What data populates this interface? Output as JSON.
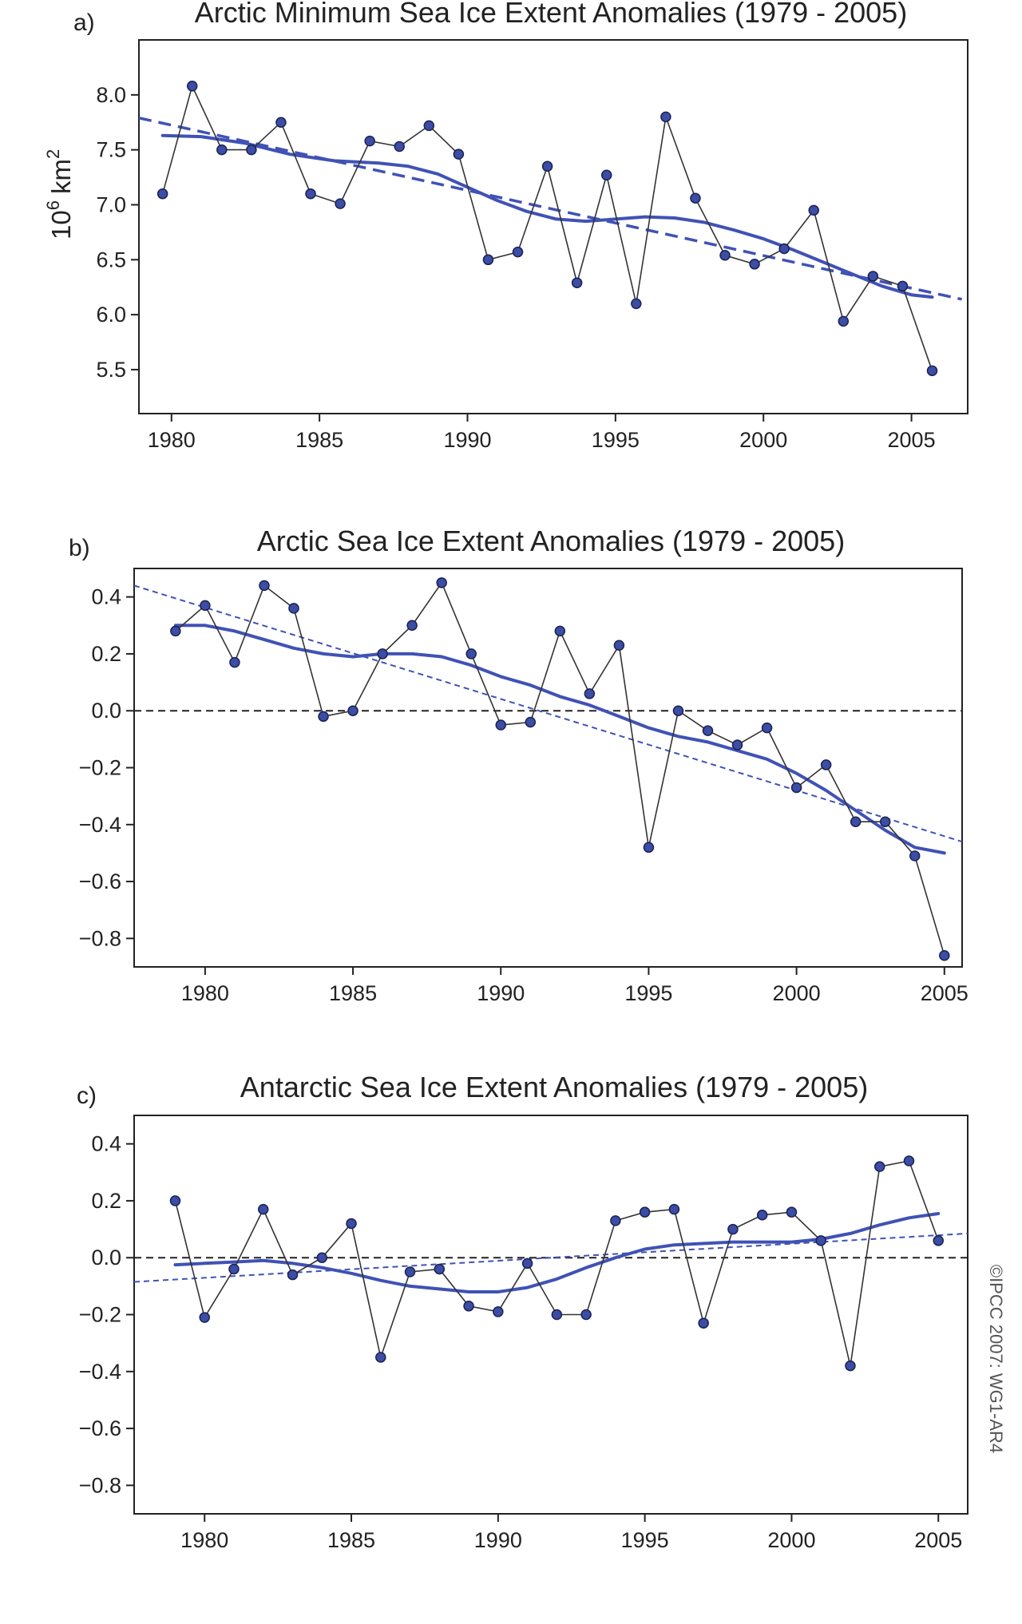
{
  "credit": "©IPCC 2007: WG1-AR4",
  "colors": {
    "series": "#4052B5",
    "observed_line": "#333333",
    "marker_fill": "#3C4DA6",
    "marker_edge": "#1B2250",
    "zero_line": "#222222",
    "frame": "#222222"
  },
  "chart_data": [
    {
      "panel": "a)",
      "type": "line",
      "title": "Arctic Minimum Sea Ice Extent Anomalies (1979 - 2005)",
      "ylabel_base": "10",
      "ylabel_exp": "6",
      "ylabel_unit": "km",
      "ylabel_unit_exp": "2",
      "xlim": [
        1978.9,
        2006.9
      ],
      "ylim": [
        5.1,
        8.5
      ],
      "xticks": [
        1980,
        1985,
        1990,
        1995,
        2000,
        2005
      ],
      "xtick_labels": [
        "1980",
        "1985",
        "1990",
        "1995",
        "2000",
        "2005"
      ],
      "yticks": [
        5.5,
        6.0,
        6.5,
        7.0,
        7.5,
        8.0
      ],
      "ytick_labels": [
        "5.5",
        "6.0",
        "6.5",
        "7.0",
        "7.5",
        "8.0"
      ],
      "zero_line": false,
      "grid": false,
      "x": [
        1979.7,
        1980.7,
        1981.7,
        1982.7,
        1983.7,
        1984.7,
        1985.7,
        1986.7,
        1987.7,
        1988.7,
        1989.7,
        1990.7,
        1991.7,
        1992.7,
        1993.7,
        1994.7,
        1995.7,
        1996.7,
        1997.7,
        1998.7,
        1999.7,
        2000.7,
        2001.7,
        2002.7,
        2003.7,
        2004.7,
        2005.7
      ],
      "observed": [
        7.1,
        8.08,
        7.5,
        7.5,
        7.75,
        7.1,
        7.01,
        7.58,
        7.53,
        7.72,
        7.46,
        6.5,
        6.57,
        7.35,
        6.29,
        7.27,
        6.1,
        7.8,
        7.06,
        6.54,
        6.46,
        6.6,
        6.95,
        5.94,
        6.35,
        6.26,
        5.49
      ],
      "smoothed_x": [
        1979.7,
        1981.0,
        1982.5,
        1984.0,
        1985.5,
        1987.0,
        1988.0,
        1989.0,
        1990.0,
        1991.0,
        1992.0,
        1993.0,
        1994.0,
        1995.0,
        1996.0,
        1997.0,
        1998.0,
        1999.0,
        2000.0,
        2001.0,
        2002.0,
        2003.0,
        2004.0,
        2005.0,
        2005.7
      ],
      "smoothed": [
        7.63,
        7.62,
        7.56,
        7.46,
        7.4,
        7.38,
        7.35,
        7.28,
        7.16,
        7.04,
        6.94,
        6.87,
        6.85,
        6.87,
        6.89,
        6.88,
        6.84,
        6.77,
        6.69,
        6.59,
        6.48,
        6.37,
        6.26,
        6.18,
        6.16
      ],
      "trend": [
        [
          1978.9,
          7.79
        ],
        [
          2006.7,
          6.14
        ]
      ]
    },
    {
      "panel": "b)",
      "type": "line",
      "title": "Arctic Sea Ice Extent Anomalies (1979 - 2005)",
      "xlim": [
        1977.6,
        2005.6
      ],
      "ylim": [
        -0.9,
        0.5
      ],
      "xticks": [
        1980,
        1985,
        1990,
        1995,
        2000,
        2005
      ],
      "xtick_labels": [
        "1980",
        "1985",
        "1990",
        "1995",
        "2000",
        "2005"
      ],
      "yticks": [
        -0.8,
        -0.6,
        -0.4,
        -0.2,
        0.0,
        0.2,
        0.4
      ],
      "ytick_labels": [
        "−0.8",
        "−0.6",
        "−0.4",
        "−0.2",
        "0.0",
        "0.2",
        "0.4"
      ],
      "zero_line": true,
      "grid": false,
      "x": [
        1979,
        1980,
        1981,
        1982,
        1983,
        1984,
        1985,
        1986,
        1987,
        1988,
        1989,
        1990,
        1991,
        1992,
        1993,
        1994,
        1995,
        1996,
        1997,
        1998,
        1999,
        2000,
        2001,
        2002,
        2003,
        2004,
        2005
      ],
      "observed": [
        0.28,
        0.37,
        0.17,
        0.44,
        0.36,
        -0.02,
        0.0,
        0.2,
        0.3,
        0.45,
        0.2,
        -0.05,
        -0.04,
        0.28,
        0.06,
        0.23,
        -0.48,
        0.0,
        -0.07,
        -0.12,
        -0.06,
        -0.27,
        -0.19,
        -0.39,
        -0.39,
        -0.51,
        -0.86
      ],
      "smoothed_x": [
        1979,
        1980,
        1981,
        1982,
        1983,
        1984,
        1985,
        1986,
        1987,
        1988,
        1989,
        1990,
        1991,
        1992,
        1993,
        1994,
        1995,
        1996,
        1997,
        1998,
        1999,
        2000,
        2001,
        2002,
        2003,
        2004,
        2005
      ],
      "smoothed": [
        0.3,
        0.3,
        0.28,
        0.25,
        0.22,
        0.2,
        0.19,
        0.2,
        0.2,
        0.19,
        0.16,
        0.12,
        0.09,
        0.05,
        0.02,
        -0.02,
        -0.06,
        -0.09,
        -0.11,
        -0.14,
        -0.17,
        -0.22,
        -0.28,
        -0.35,
        -0.42,
        -0.48,
        -0.5
      ],
      "trend": [
        [
          1977.6,
          0.44
        ],
        [
          2005.6,
          -0.46
        ]
      ]
    },
    {
      "panel": "c)",
      "type": "line",
      "title": "Antarctic Sea Ice Extent Anomalies (1979 - 2005)",
      "xlim": [
        1977.6,
        2006.0
      ],
      "ylim": [
        -0.9,
        0.5
      ],
      "xticks": [
        1980,
        1985,
        1990,
        1995,
        2000,
        2005
      ],
      "xtick_labels": [
        "1980",
        "1985",
        "1990",
        "1995",
        "2000",
        "2005"
      ],
      "yticks": [
        -0.8,
        -0.6,
        -0.4,
        -0.2,
        0.0,
        0.2,
        0.4
      ],
      "ytick_labels": [
        "−0.8",
        "−0.6",
        "−0.4",
        "−0.2",
        "0.0",
        "0.2",
        "0.4"
      ],
      "zero_line": true,
      "grid": false,
      "x": [
        1979,
        1980,
        1981,
        1982,
        1983,
        1984,
        1985,
        1986,
        1987,
        1988,
        1989,
        1990,
        1991,
        1992,
        1993,
        1994,
        1995,
        1996,
        1997,
        1998,
        1999,
        2000,
        2001,
        2002,
        2003,
        2004,
        2005
      ],
      "observed": [
        0.2,
        -0.21,
        -0.04,
        0.17,
        -0.06,
        0.0,
        0.12,
        -0.35,
        -0.05,
        -0.04,
        -0.17,
        -0.19,
        -0.02,
        -0.2,
        -0.2,
        0.13,
        0.16,
        0.17,
        -0.23,
        0.1,
        0.15,
        0.16,
        0.06,
        -0.38,
        0.32,
        0.34,
        0.06
      ],
      "smoothed_x": [
        1979,
        1980,
        1981,
        1982,
        1983,
        1984,
        1985,
        1986,
        1987,
        1988,
        1989,
        1990,
        1991,
        1992,
        1993,
        1994,
        1995,
        1996,
        1997,
        1998,
        1999,
        2000,
        2001,
        2002,
        2003,
        2004,
        2005
      ],
      "smoothed": [
        -0.025,
        -0.02,
        -0.015,
        -0.01,
        -0.02,
        -0.035,
        -0.055,
        -0.08,
        -0.1,
        -0.11,
        -0.12,
        -0.12,
        -0.105,
        -0.075,
        -0.035,
        0.0,
        0.03,
        0.045,
        0.05,
        0.055,
        0.055,
        0.055,
        0.065,
        0.085,
        0.115,
        0.14,
        0.155
      ],
      "trend": [
        [
          1977.6,
          -0.085
        ],
        [
          2006.0,
          0.085
        ]
      ]
    }
  ]
}
